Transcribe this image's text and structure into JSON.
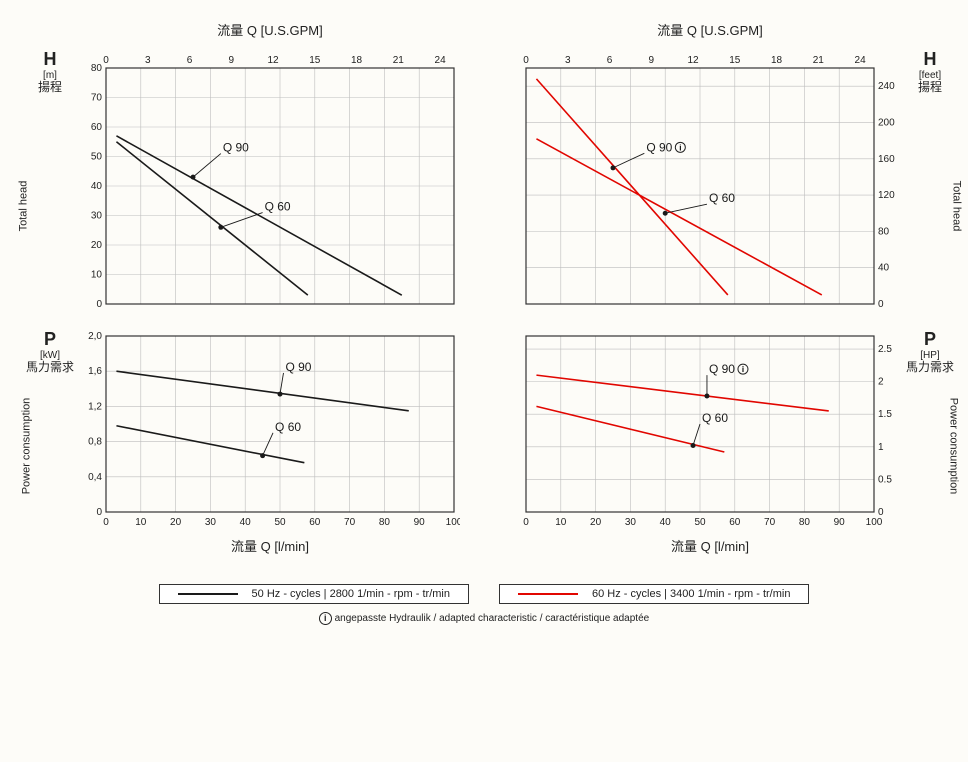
{
  "axis_top_label": "流量  Q  [U.S.GPM]",
  "axis_bot_label": "流量  Q  [l/min]",
  "left_head": {
    "sym": "H",
    "unit": "[m]",
    "cjk": "揚程",
    "rot": "Total head"
  },
  "right_head": {
    "sym": "H",
    "unit": "[feet]",
    "cjk": "揚程",
    "rot": "Total head"
  },
  "left_power": {
    "sym": "P",
    "unit": "[kW]",
    "cjk": "馬力需求",
    "rot": "Power consumption"
  },
  "right_power": {
    "sym": "P",
    "unit": "[HP]",
    "cjk": "馬力需求",
    "rot": "Power consumption"
  },
  "top_ticks": [
    0,
    3,
    6,
    9,
    12,
    15,
    18,
    21,
    24
  ],
  "bot_ticks": [
    0,
    10,
    20,
    30,
    40,
    50,
    60,
    70,
    80,
    90,
    100
  ],
  "head_m_ticks": [
    0,
    10,
    20,
    30,
    40,
    50,
    60,
    70,
    80
  ],
  "head_ft_ticks": [
    0,
    40,
    80,
    120,
    160,
    200,
    240
  ],
  "power_kw_ticks": [
    "0",
    "0,4",
    "0,8",
    "1,2",
    "1,6",
    "2,0"
  ],
  "power_kw_vals": [
    0,
    0.4,
    0.8,
    1.2,
    1.6,
    2.0
  ],
  "power_hp_ticks": [
    0,
    0.5,
    1.0,
    1.5,
    2.0,
    2.5
  ],
  "bot_xmin": 0,
  "bot_xmax": 100,
  "top_xmin": 0,
  "top_xmax": 25,
  "colors": {
    "black": "#1a1a1a",
    "red": "#e10600",
    "grid": "#bdbdbd",
    "frame": "#333"
  },
  "panel_A": {
    "ymin": 0,
    "ymax": 80,
    "series": [
      {
        "name": "Q 90",
        "pts": [
          [
            3,
            57
          ],
          [
            85,
            3
          ]
        ],
        "mark": [
          25,
          43
        ],
        "lbl_at": [
          33,
          51
        ]
      },
      {
        "name": "Q 60",
        "pts": [
          [
            3,
            55
          ],
          [
            58,
            3
          ]
        ],
        "mark": [
          33,
          26
        ],
        "lbl_at": [
          45,
          31
        ]
      }
    ]
  },
  "panel_B": {
    "ymin": 0,
    "ymax": 260,
    "series": [
      {
        "name": "Q 90",
        "info": true,
        "pts": [
          [
            3,
            248
          ],
          [
            58,
            10
          ]
        ],
        "mark": [
          25,
          150
        ],
        "lbl_at": [
          34,
          166
        ]
      },
      {
        "name": "Q 60",
        "pts": [
          [
            3,
            182
          ],
          [
            85,
            10
          ]
        ],
        "mark": [
          40,
          100
        ],
        "lbl_at": [
          52,
          110
        ]
      }
    ]
  },
  "panel_C": {
    "ymin": 0,
    "ymax": 2.0,
    "series": [
      {
        "name": "Q 90",
        "pts": [
          [
            3,
            1.6
          ],
          [
            87,
            1.15
          ]
        ],
        "mark": [
          50,
          1.34
        ],
        "lbl_at": [
          51,
          1.58
        ]
      },
      {
        "name": "Q 60",
        "pts": [
          [
            3,
            0.98
          ],
          [
            57,
            0.56
          ]
        ],
        "mark": [
          45,
          0.64
        ],
        "lbl_at": [
          48,
          0.9
        ]
      }
    ]
  },
  "panel_D": {
    "ymin": 0,
    "ymax": 2.7,
    "series": [
      {
        "name": "Q 90",
        "info": true,
        "pts": [
          [
            3,
            2.1
          ],
          [
            87,
            1.55
          ]
        ],
        "mark": [
          52,
          1.78
        ],
        "lbl_at": [
          52,
          2.1
        ]
      },
      {
        "name": "Q 60",
        "pts": [
          [
            3,
            1.62
          ],
          [
            57,
            0.92
          ]
        ],
        "mark": [
          48,
          1.02
        ],
        "lbl_at": [
          50,
          1.35
        ]
      }
    ]
  },
  "legend": {
    "left": "50 Hz - cycles | 2800 1/min - rpm - tr/min",
    "right": "60 Hz - cycles | 3400 1/min - rpm - tr/min"
  },
  "footnote": "angepasste Hydraulik / adapted characteristic / caractéristique adaptée"
}
